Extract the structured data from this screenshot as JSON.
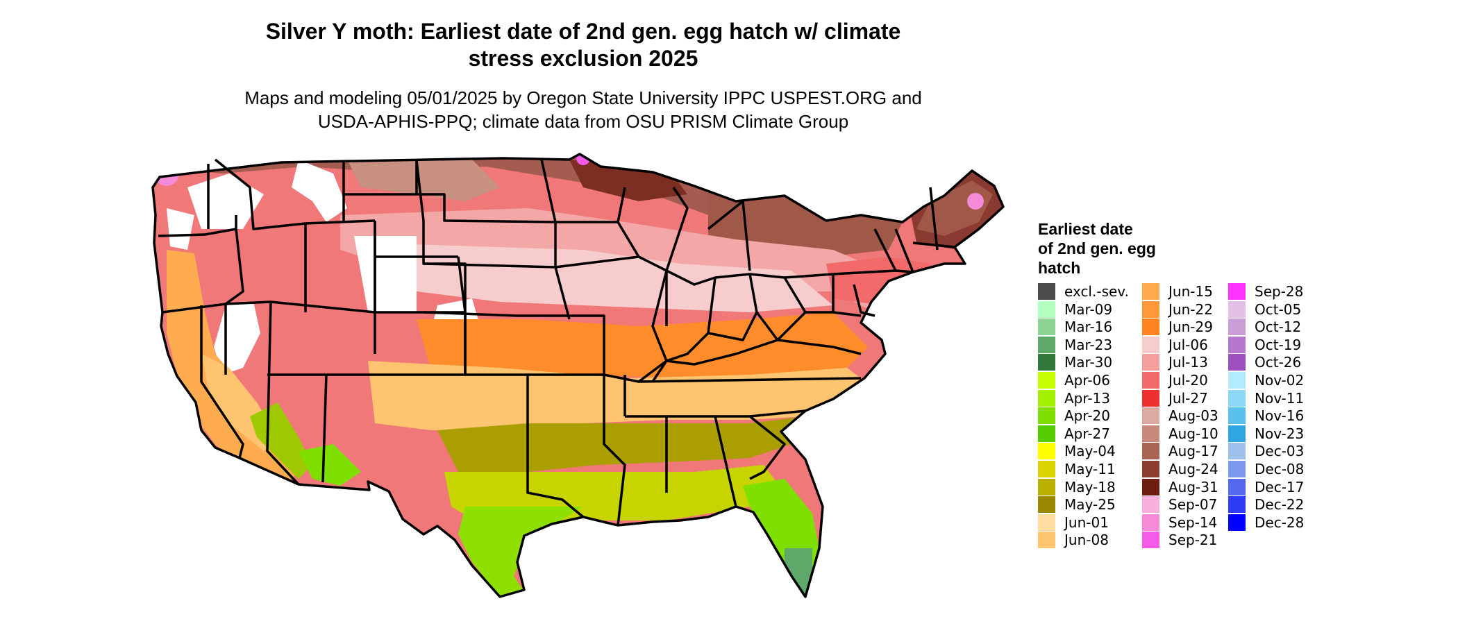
{
  "title_line1": "Silver Y moth: Earliest date of 2nd gen. egg hatch w/ climate",
  "title_line2": "stress exclusion 2025",
  "subtitle_line1": "Maps and modeling 05/01/2025 by Oregon State University IPPC USPEST.ORG and",
  "subtitle_line2": "USDA-APHIS-PPQ; climate data from OSU PRISM Climate Group",
  "legend": {
    "title_lines": [
      "Earliest date",
      "of 2nd gen. egg",
      "hatch"
    ],
    "columns": [
      [
        {
          "label": "excl.-sev.",
          "color": "#4d4d4d"
        },
        {
          "label": "Mar-09",
          "color": "#b3ffbf"
        },
        {
          "label": "Mar-16",
          "color": "#8cd494"
        },
        {
          "label": "Mar-23",
          "color": "#5ea86a"
        },
        {
          "label": "Mar-30",
          "color": "#327a3c"
        },
        {
          "label": "Apr-06",
          "color": "#c8ff00"
        },
        {
          "label": "Apr-13",
          "color": "#a3ef00"
        },
        {
          "label": "Apr-20",
          "color": "#7fe000"
        },
        {
          "label": "Apr-27",
          "color": "#55cc00"
        },
        {
          "label": "May-04",
          "color": "#ffff00"
        },
        {
          "label": "May-11",
          "color": "#dcd400"
        },
        {
          "label": "May-18",
          "color": "#bab000"
        },
        {
          "label": "May-25",
          "color": "#998800"
        },
        {
          "label": "Jun-01",
          "color": "#ffdca0"
        },
        {
          "label": "Jun-08",
          "color": "#ffc470"
        }
      ],
      [
        {
          "label": "Jun-15",
          "color": "#ffac50"
        },
        {
          "label": "Jun-22",
          "color": "#ff9838"
        },
        {
          "label": "Jun-29",
          "color": "#ff8420"
        },
        {
          "label": "Jul-06",
          "color": "#f7cccc"
        },
        {
          "label": "Jul-13",
          "color": "#f59e9e"
        },
        {
          "label": "Jul-20",
          "color": "#f26a6a"
        },
        {
          "label": "Jul-27",
          "color": "#ee3030"
        },
        {
          "label": "Aug-03",
          "color": "#dcaaa0"
        },
        {
          "label": "Aug-10",
          "color": "#c88a7c"
        },
        {
          "label": "Aug-17",
          "color": "#aa6454"
        },
        {
          "label": "Aug-24",
          "color": "#8c3c30"
        },
        {
          "label": "Aug-31",
          "color": "#6e1e10"
        },
        {
          "label": "Sep-07",
          "color": "#f7b0dc"
        },
        {
          "label": "Sep-14",
          "color": "#f58ad8"
        },
        {
          "label": "Sep-21",
          "color": "#f55ae8"
        }
      ],
      [
        {
          "label": "Sep-28",
          "color": "#ff33ff"
        },
        {
          "label": "Oct-05",
          "color": "#e4bfe6"
        },
        {
          "label": "Oct-12",
          "color": "#cc9ed8"
        },
        {
          "label": "Oct-19",
          "color": "#b678cc"
        },
        {
          "label": "Oct-26",
          "color": "#9e50bf"
        },
        {
          "label": "Nov-02",
          "color": "#b3ecff"
        },
        {
          "label": "Nov-11",
          "color": "#8ad8f5"
        },
        {
          "label": "Nov-16",
          "color": "#5cc0ec"
        },
        {
          "label": "Nov-23",
          "color": "#2ea6e0"
        },
        {
          "label": "Dec-03",
          "color": "#a0c0ec"
        },
        {
          "label": "Dec-08",
          "color": "#7c98ec"
        },
        {
          "label": "Dec-17",
          "color": "#5468f0"
        },
        {
          "label": "Dec-22",
          "color": "#2e3cf7"
        },
        {
          "label": "Dec-28",
          "color": "#0000ff"
        }
      ]
    ]
  }
}
